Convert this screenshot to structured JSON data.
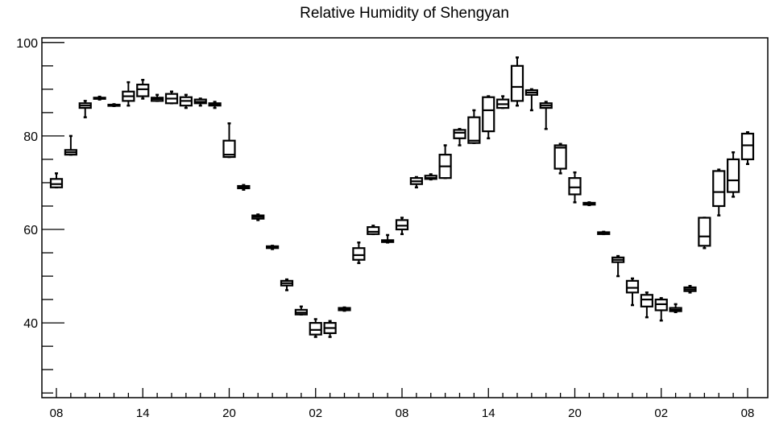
{
  "chart_data": {
    "type": "boxplot",
    "title": "Relative Humidity of Shengyan",
    "xlabel": "",
    "ylabel": "",
    "ylim": [
      24,
      101
    ],
    "yticks": [
      40,
      60,
      80,
      100
    ],
    "xtick_labels": [
      "08",
      "14",
      "20",
      "02",
      "08",
      "14",
      "20",
      "02",
      "08"
    ],
    "grid": false,
    "boxes": [
      {
        "x": 0,
        "low": 69.0,
        "q1": 69.0,
        "median": 69.7,
        "q3": 70.8,
        "high": 72.0
      },
      {
        "x": 1,
        "low": 76.0,
        "q1": 76.0,
        "median": 76.5,
        "q3": 77.0,
        "high": 80.0
      },
      {
        "x": 2,
        "low": 84.0,
        "q1": 86.0,
        "median": 86.5,
        "q3": 87.0,
        "high": 87.5
      },
      {
        "x": 3,
        "low": 87.8,
        "q1": 88.0,
        "median": 88.0,
        "q3": 88.2,
        "high": 88.4
      },
      {
        "x": 4,
        "low": 86.4,
        "q1": 86.5,
        "median": 86.6,
        "q3": 86.7,
        "high": 86.8
      },
      {
        "x": 5,
        "low": 86.5,
        "q1": 87.5,
        "median": 88.5,
        "q3": 89.5,
        "high": 91.5
      },
      {
        "x": 6,
        "low": 88.0,
        "q1": 88.5,
        "median": 90.0,
        "q3": 91.0,
        "high": 92.0
      },
      {
        "x": 7,
        "low": 87.5,
        "q1": 87.5,
        "median": 87.9,
        "q3": 88.2,
        "high": 88.8
      },
      {
        "x": 8,
        "low": 87.0,
        "q1": 87.0,
        "median": 88.0,
        "q3": 89.0,
        "high": 89.5
      },
      {
        "x": 9,
        "low": 86.0,
        "q1": 86.5,
        "median": 87.5,
        "q3": 88.3,
        "high": 88.8
      },
      {
        "x": 10,
        "low": 86.5,
        "q1": 87.0,
        "median": 87.3,
        "q3": 87.8,
        "high": 88.0
      },
      {
        "x": 11,
        "low": 86.0,
        "q1": 86.5,
        "median": 86.8,
        "q3": 87.0,
        "high": 87.3
      },
      {
        "x": 12,
        "low": 75.5,
        "q1": 75.5,
        "median": 76.0,
        "q3": 79.0,
        "high": 82.7
      },
      {
        "x": 13,
        "low": 68.5,
        "q1": 68.8,
        "median": 69.0,
        "q3": 69.3,
        "high": 69.5
      },
      {
        "x": 14,
        "low": 62.0,
        "q1": 62.3,
        "median": 62.7,
        "q3": 63.0,
        "high": 63.2
      },
      {
        "x": 15,
        "low": 55.8,
        "q1": 56.0,
        "median": 56.2,
        "q3": 56.4,
        "high": 56.5
      },
      {
        "x": 16,
        "low": 47.0,
        "q1": 48.0,
        "median": 48.5,
        "q3": 49.0,
        "high": 49.3
      },
      {
        "x": 17,
        "low": 41.8,
        "q1": 41.8,
        "median": 42.2,
        "q3": 42.8,
        "high": 43.5
      },
      {
        "x": 18,
        "low": 37.0,
        "q1": 37.5,
        "median": 38.5,
        "q3": 40.0,
        "high": 40.8
      },
      {
        "x": 19,
        "low": 37.0,
        "q1": 37.8,
        "median": 38.9,
        "q3": 40.0,
        "high": 40.4
      },
      {
        "x": 20,
        "low": 42.6,
        "q1": 42.7,
        "median": 43.0,
        "q3": 43.2,
        "high": 43.3
      },
      {
        "x": 21,
        "low": 52.8,
        "q1": 53.5,
        "median": 54.5,
        "q3": 56.0,
        "high": 57.2
      },
      {
        "x": 22,
        "low": 59.0,
        "q1": 59.0,
        "median": 59.5,
        "q3": 60.5,
        "high": 60.8
      },
      {
        "x": 23,
        "low": 57.2,
        "q1": 57.3,
        "median": 57.5,
        "q3": 57.7,
        "high": 58.8
      },
      {
        "x": 24,
        "low": 59.0,
        "q1": 60.0,
        "median": 60.8,
        "q3": 62.0,
        "high": 62.5
      },
      {
        "x": 25,
        "low": 69.0,
        "q1": 69.7,
        "median": 70.3,
        "q3": 71.0,
        "high": 71.2
      },
      {
        "x": 26,
        "low": 70.7,
        "q1": 70.8,
        "median": 71.0,
        "q3": 71.5,
        "high": 71.8
      },
      {
        "x": 27,
        "low": 71.0,
        "q1": 71.0,
        "median": 73.5,
        "q3": 76.0,
        "high": 78.0
      },
      {
        "x": 28,
        "low": 78.0,
        "q1": 79.5,
        "median": 80.7,
        "q3": 81.3,
        "high": 81.5
      },
      {
        "x": 29,
        "low": 78.5,
        "q1": 78.5,
        "median": 79.0,
        "q3": 84.0,
        "high": 85.5
      },
      {
        "x": 30,
        "low": 79.5,
        "q1": 81.0,
        "median": 85.5,
        "q3": 88.3,
        "high": 88.5
      },
      {
        "x": 31,
        "low": 86.0,
        "q1": 86.0,
        "median": 86.8,
        "q3": 87.8,
        "high": 88.5
      },
      {
        "x": 32,
        "low": 86.5,
        "q1": 87.5,
        "median": 90.5,
        "q3": 95.0,
        "high": 96.8
      },
      {
        "x": 33,
        "low": 85.5,
        "q1": 88.8,
        "median": 89.3,
        "q3": 89.8,
        "high": 90.0
      },
      {
        "x": 34,
        "low": 81.5,
        "q1": 86.0,
        "median": 86.5,
        "q3": 87.0,
        "high": 87.3
      },
      {
        "x": 35,
        "low": 72.0,
        "q1": 73.0,
        "median": 77.5,
        "q3": 78.0,
        "high": 78.3
      },
      {
        "x": 36,
        "low": 65.8,
        "q1": 67.5,
        "median": 69.0,
        "q3": 71.0,
        "high": 72.2
      },
      {
        "x": 37,
        "low": 65.2,
        "q1": 65.3,
        "median": 65.5,
        "q3": 65.7,
        "high": 65.8
      },
      {
        "x": 38,
        "low": 59.0,
        "q1": 59.0,
        "median": 59.2,
        "q3": 59.4,
        "high": 59.5
      },
      {
        "x": 39,
        "low": 50.0,
        "q1": 53.0,
        "median": 53.5,
        "q3": 54.0,
        "high": 54.3
      },
      {
        "x": 40,
        "low": 43.8,
        "q1": 46.5,
        "median": 47.5,
        "q3": 49.0,
        "high": 49.5
      },
      {
        "x": 41,
        "low": 41.2,
        "q1": 43.5,
        "median": 45.0,
        "q3": 46.0,
        "high": 46.5
      },
      {
        "x": 42,
        "low": 40.5,
        "q1": 42.7,
        "median": 44.0,
        "q3": 45.0,
        "high": 45.3
      },
      {
        "x": 43,
        "low": 42.3,
        "q1": 42.5,
        "median": 42.8,
        "q3": 43.2,
        "high": 44.0
      },
      {
        "x": 44,
        "low": 46.5,
        "q1": 46.8,
        "median": 47.2,
        "q3": 47.6,
        "high": 47.9
      },
      {
        "x": 45,
        "low": 56.0,
        "q1": 56.5,
        "median": 58.5,
        "q3": 62.5,
        "high": 62.5
      },
      {
        "x": 46,
        "low": 63.0,
        "q1": 65.0,
        "median": 68.0,
        "q3": 72.5,
        "high": 72.8
      },
      {
        "x": 47,
        "low": 67.0,
        "q1": 68.0,
        "median": 70.5,
        "q3": 75.0,
        "high": 76.5
      },
      {
        "x": 48,
        "low": 74.0,
        "q1": 75.0,
        "median": 78.0,
        "q3": 80.5,
        "high": 80.8
      }
    ]
  }
}
